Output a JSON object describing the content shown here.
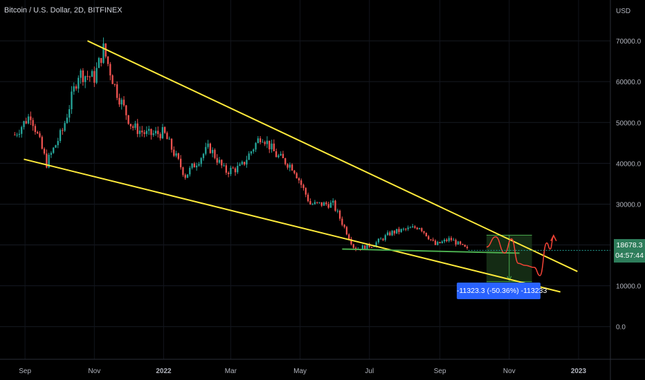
{
  "header": {
    "title": "Bitcoin / U.S. Dollar, 2D, BITFINEX"
  },
  "price_tag": {
    "price": "18678.3",
    "countdown": "04:57:44"
  },
  "measure": {
    "label": "-11323.3 (-50.36%) -113233"
  },
  "colors": {
    "background": "#000000",
    "up": "#26a69a",
    "down": "#ef5350",
    "trendline": "#ffeb3b",
    "support": "#4caf50",
    "projection": "#f44336",
    "measure_box": "#1b3a1b",
    "label_bg": "#2962ff"
  },
  "chart_data": {
    "type": "candlestick",
    "title": "Bitcoin / U.S. Dollar, 2D, BITFINEX",
    "y_axis": {
      "unit": "USD",
      "ticks": [
        0,
        10000,
        20000,
        30000,
        40000,
        50000,
        60000,
        70000
      ],
      "tick_labels": [
        "0.0",
        "10000.0",
        "20000.0",
        "30000.0",
        "40000.0",
        "50000.0",
        "60000.0",
        "70000.0"
      ],
      "range": [
        -8000,
        80000
      ]
    },
    "x_axis": {
      "ticks": [
        "Sep",
        "Nov",
        "2022",
        "Mar",
        "May",
        "Jul",
        "Sep",
        "Nov",
        "2023"
      ]
    },
    "close_path": [
      [
        "2021-08-23",
        47000
      ],
      [
        "2021-09-06",
        52000
      ],
      [
        "2021-09-20",
        40000
      ],
      [
        "2021-10-04",
        48000
      ],
      [
        "2021-10-18",
        62000
      ],
      [
        "2021-11-01",
        61000
      ],
      [
        "2021-11-09",
        68000
      ],
      [
        "2021-11-20",
        58000
      ],
      [
        "2021-12-04",
        49000
      ],
      [
        "2021-12-18",
        47000
      ],
      [
        "2022-01-01",
        47500
      ],
      [
        "2022-01-20",
        37000
      ],
      [
        "2022-02-10",
        44000
      ],
      [
        "2022-02-24",
        38000
      ],
      [
        "2022-03-10",
        39000
      ],
      [
        "2022-03-28",
        47000
      ],
      [
        "2022-04-10",
        42000
      ],
      [
        "2022-04-25",
        39000
      ],
      [
        "2022-05-10",
        30000
      ],
      [
        "2022-05-30",
        30000
      ],
      [
        "2022-06-13",
        22000
      ],
      [
        "2022-06-18",
        19000
      ],
      [
        "2022-07-04",
        20000
      ],
      [
        "2022-07-20",
        23000
      ],
      [
        "2022-08-14",
        24500
      ],
      [
        "2022-08-28",
        20000
      ],
      [
        "2022-09-10",
        21500
      ],
      [
        "2022-09-26",
        18678.3
      ]
    ],
    "last_price": 18678.3,
    "trendlines": [
      {
        "name": "upper",
        "from": [
          "2021-10-26",
          70000
        ],
        "to": [
          "2022-12-31",
          13500
        ]
      },
      {
        "name": "lower",
        "from": [
          "2021-08-31",
          41000
        ],
        "to": [
          "2022-12-16",
          8500
        ]
      }
    ],
    "support_line": {
      "from": [
        "2022-06-07",
        19000
      ],
      "to": [
        "2022-11-10",
        18000
      ]
    },
    "measure": {
      "from": [
        "2022-10-12",
        22400
      ],
      "to": [
        "2022-11-21",
        11000
      ],
      "label": "-11323.3 (-50.36%) -113233"
    },
    "projection": [
      [
        "2022-10-12",
        19500
      ],
      [
        "2022-10-20",
        22000
      ],
      [
        "2022-10-28",
        18000
      ],
      [
        "2022-11-03",
        21500
      ],
      [
        "2022-11-09",
        15500
      ],
      [
        "2022-11-15",
        15000
      ],
      [
        "2022-11-23",
        14500
      ],
      [
        "2022-11-28",
        12500
      ],
      [
        "2022-12-04",
        20500
      ],
      [
        "2022-12-07",
        19000
      ],
      [
        "2022-12-10",
        22000
      ]
    ]
  }
}
